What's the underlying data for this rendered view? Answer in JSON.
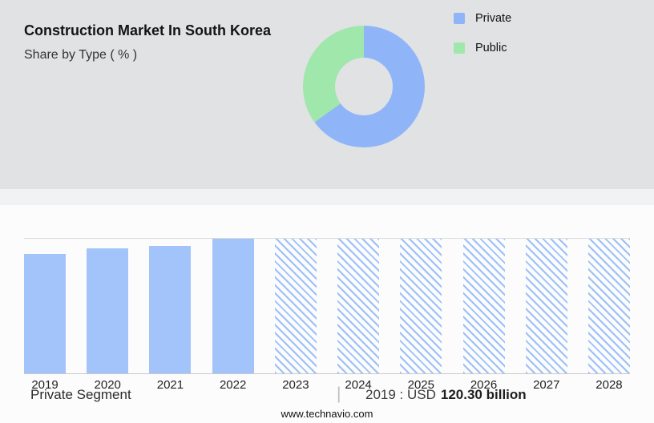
{
  "page": {
    "title": "Construction Market In South Korea",
    "subtitle": "Share by Type ( % )",
    "footer_left": "Private Segment",
    "footer_separator": "|",
    "footer_stat_prefix": "2019 : USD",
    "footer_stat_value": "120.30 billion",
    "website": "www.technavio.com"
  },
  "legend": [
    {
      "label": "Private",
      "color": "#8FB5F8"
    },
    {
      "label": "Public",
      "color": "#A0E7AC"
    }
  ],
  "chart_data": [
    {
      "type": "pie",
      "title": "Share by Type ( % )",
      "labels": [
        "Private",
        "Public"
      ],
      "values": [
        65,
        35
      ],
      "colors": [
        "#8FB5F8",
        "#A0E7AC"
      ],
      "donut": true,
      "legend_position": "right"
    },
    {
      "type": "bar",
      "title": "Private Segment",
      "categories": [
        "2019",
        "2020",
        "2021",
        "2022",
        "2023",
        "2024",
        "2025",
        "2026",
        "2027",
        "2028"
      ],
      "values": [
        120.3,
        126,
        129,
        136,
        136,
        136,
        136,
        136,
        136,
        136
      ],
      "unit": "USD billion",
      "forecast_from": "2023",
      "forecast_style": "hatched",
      "annotation": "2019 : USD 120.30 billion",
      "bar_color": "#A3C4FA",
      "grid": "top-gridline-and-baseline",
      "ylim": [
        0,
        136
      ]
    }
  ]
}
